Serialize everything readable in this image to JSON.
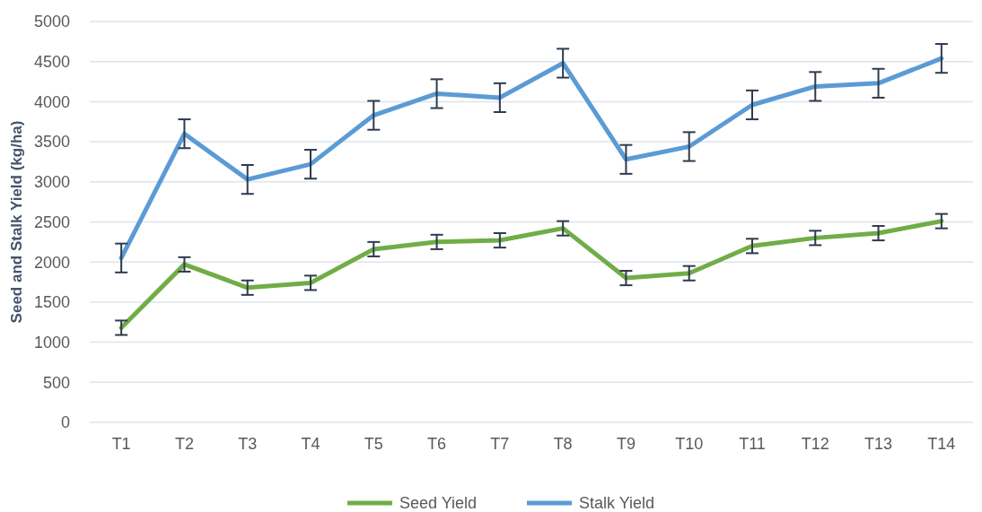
{
  "chart_data": {
    "type": "line",
    "ylabel": "Seed and Stalk Yield (kg/ha)",
    "categories": [
      "T1",
      "T2",
      "T3",
      "T4",
      "T5",
      "T6",
      "T7",
      "T8",
      "T9",
      "T10",
      "T11",
      "T12",
      "T13",
      "T14"
    ],
    "series": [
      {
        "name": "Seed Yield",
        "color": "#70ad47",
        "values": [
          1180,
          1970,
          1680,
          1740,
          2160,
          2250,
          2270,
          2420,
          1800,
          1860,
          2200,
          2300,
          2360,
          2510
        ],
        "errors": [
          90,
          90,
          90,
          90,
          90,
          90,
          90,
          90,
          90,
          90,
          90,
          90,
          90,
          90
        ]
      },
      {
        "name": "Stalk Yield",
        "color": "#5b9bd5",
        "values": [
          2050,
          3600,
          3030,
          3220,
          3830,
          4100,
          4050,
          4480,
          3280,
          3440,
          3960,
          4190,
          4230,
          4540
        ],
        "errors": [
          180,
          180,
          180,
          180,
          180,
          180,
          180,
          180,
          180,
          180,
          180,
          180,
          180,
          180
        ]
      }
    ],
    "ylim": [
      0,
      5000
    ],
    "yticks": [
      0,
      500,
      1000,
      1500,
      2000,
      2500,
      3000,
      3500,
      4000,
      4500,
      5000
    ],
    "grid": "y",
    "legend": "bottom",
    "marker": "none",
    "line_style": "solid"
  }
}
